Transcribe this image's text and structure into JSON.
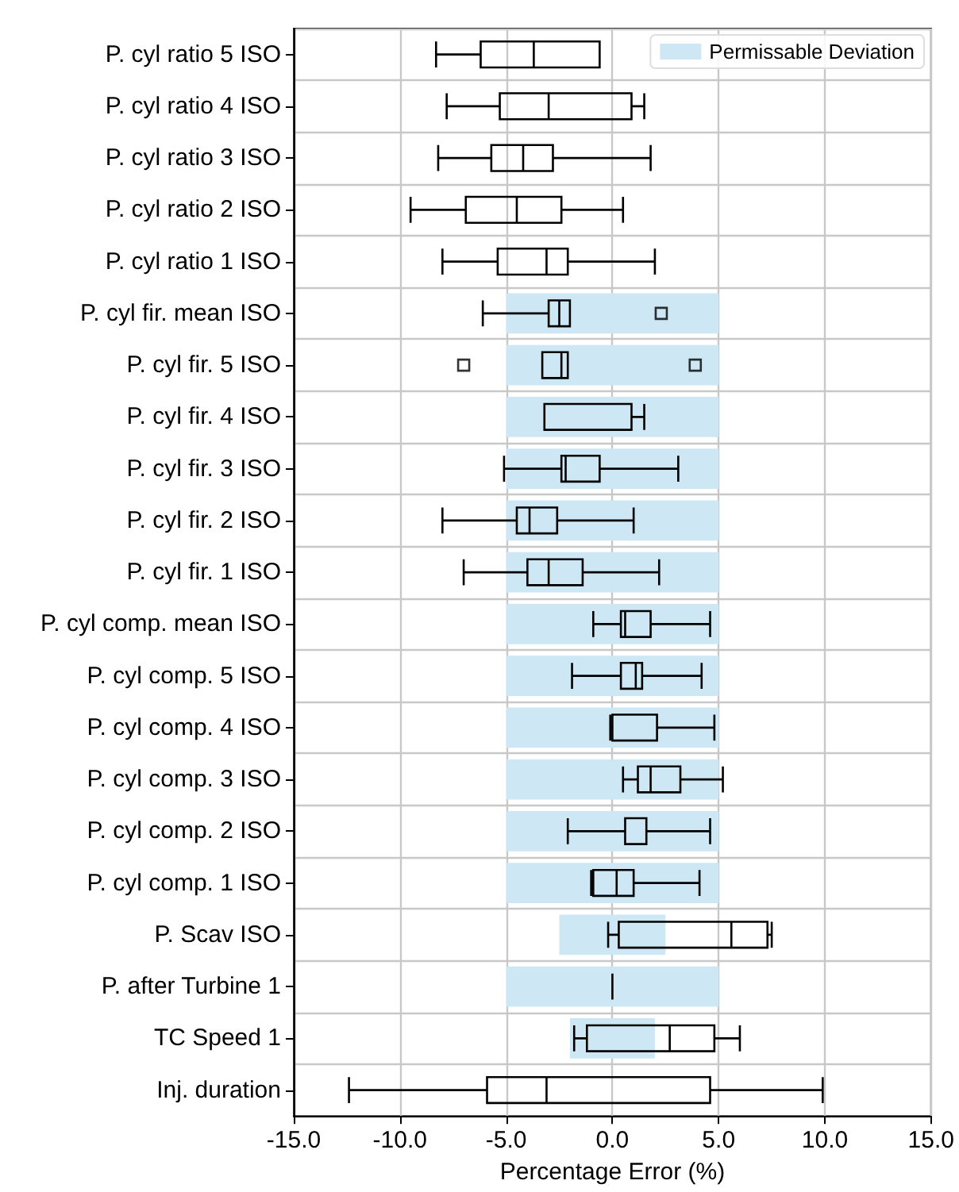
{
  "chart_data": {
    "type": "box",
    "orientation": "horizontal",
    "xlabel": "Percentage Error (%)",
    "categories": [
      "P. cyl ratio 5 ISO",
      "P. cyl ratio 4 ISO",
      "P. cyl ratio 3 ISO",
      "P. cyl ratio 2 ISO",
      "P. cyl ratio 1 ISO",
      "P. cyl fir. mean ISO",
      "P. cyl fir. 5 ISO",
      "P. cyl fir. 4 ISO",
      "P. cyl fir. 3 ISO",
      "P. cyl fir. 2 ISO",
      "P. cyl fir. 1 ISO",
      "P. cyl comp. mean ISO",
      "P. cyl comp. 5 ISO",
      "P. cyl comp. 4 ISO",
      "P. cyl comp. 3 ISO",
      "P. cyl comp. 2 ISO",
      "P. cyl comp. 1 ISO",
      "P. Scav ISO",
      "P. after Turbine 1",
      "TC Speed 1",
      "Inj. duration"
    ],
    "xlim": [
      -15,
      15
    ],
    "xticks": [
      {
        "value": -15,
        "label": "-15.0"
      },
      {
        "value": -10,
        "label": "-10.0"
      },
      {
        "value": -5,
        "label": "-5.0"
      },
      {
        "value": 0,
        "label": "0.0"
      },
      {
        "value": 5,
        "label": "5.0"
      },
      {
        "value": 10,
        "label": "10.0"
      },
      {
        "value": 15,
        "label": "15.0"
      }
    ],
    "grid": true,
    "legend": "top right",
    "series": [
      {
        "type": "bar",
        "name": "Permissable Deviation",
        "color": "#cde8f4",
        "base": [
          null,
          null,
          null,
          null,
          null,
          -5,
          -5,
          -5,
          -5,
          -5,
          -5,
          -5,
          -5,
          -5,
          -5,
          -5,
          -5,
          -2.5,
          -5,
          -2,
          null
        ],
        "values": [
          null,
          null,
          null,
          null,
          null,
          10,
          10,
          10,
          10,
          10,
          10,
          10,
          10,
          10,
          10,
          10,
          10,
          5,
          10,
          4,
          null
        ]
      },
      {
        "color": "#000000",
        "boxes": [
          {
            "low": -8.3,
            "q1": -6.2,
            "median": -3.7,
            "q3": -0.6,
            "high": -0.6
          },
          {
            "low": -7.8,
            "q1": -5.3,
            "median": -3.0,
            "q3": 0.9,
            "high": 1.5
          },
          {
            "low": -8.2,
            "q1": -5.7,
            "median": -4.2,
            "q3": -2.8,
            "high": 1.8
          },
          {
            "low": -9.5,
            "q1": -6.9,
            "median": -4.5,
            "q3": -2.4,
            "high": 0.5
          },
          {
            "low": -8.0,
            "q1": -5.4,
            "median": -3.1,
            "q3": -2.1,
            "high": 2.0
          },
          {
            "low": -6.1,
            "q1": -3.0,
            "median": -2.5,
            "q3": -2.0,
            "high": -2.0,
            "outliers": [
              2.3
            ]
          },
          {
            "low": -3.3,
            "q1": -3.3,
            "median": -2.4,
            "q3": -2.1,
            "high": -2.1,
            "outliers": [
              -7.0,
              3.9
            ]
          },
          {
            "low": -3.2,
            "q1": -3.2,
            "median": -3.2,
            "q3": 0.9,
            "high": 1.5
          },
          {
            "low": -5.1,
            "q1": -2.4,
            "median": -2.2,
            "q3": -0.6,
            "high": 3.1
          },
          {
            "low": -8.0,
            "q1": -4.5,
            "median": -3.9,
            "q3": -2.6,
            "high": 1.0
          },
          {
            "low": -7.0,
            "q1": -4.0,
            "median": -3.0,
            "q3": -1.4,
            "high": 2.2
          },
          {
            "low": -0.9,
            "q1": 0.4,
            "median": 0.6,
            "q3": 1.8,
            "high": 4.6
          },
          {
            "low": -1.9,
            "q1": 0.4,
            "median": 1.1,
            "q3": 1.4,
            "high": 4.2
          },
          {
            "low": -0.1,
            "q1": 0.0,
            "median": 0.0,
            "q3": 2.1,
            "high": 4.8
          },
          {
            "low": 0.5,
            "q1": 1.2,
            "median": 1.8,
            "q3": 3.2,
            "high": 5.2
          },
          {
            "low": -2.1,
            "q1": 0.6,
            "median": 0.6,
            "q3": 1.6,
            "high": 4.6
          },
          {
            "low": -1.0,
            "q1": -0.9,
            "median": 0.2,
            "q3": 1.0,
            "high": 4.1
          },
          {
            "low": -0.2,
            "q1": 0.3,
            "median": 5.6,
            "q3": 7.3,
            "high": 7.5
          },
          {
            "low": 0,
            "q1": 0,
            "median": 0,
            "q3": 0,
            "high": 0
          },
          {
            "low": -1.8,
            "q1": -1.2,
            "median": 2.7,
            "q3": 4.8,
            "high": 6.0
          },
          {
            "low": -12.4,
            "q1": -5.9,
            "median": -3.1,
            "q3": 4.6,
            "high": 9.9
          }
        ]
      }
    ]
  }
}
